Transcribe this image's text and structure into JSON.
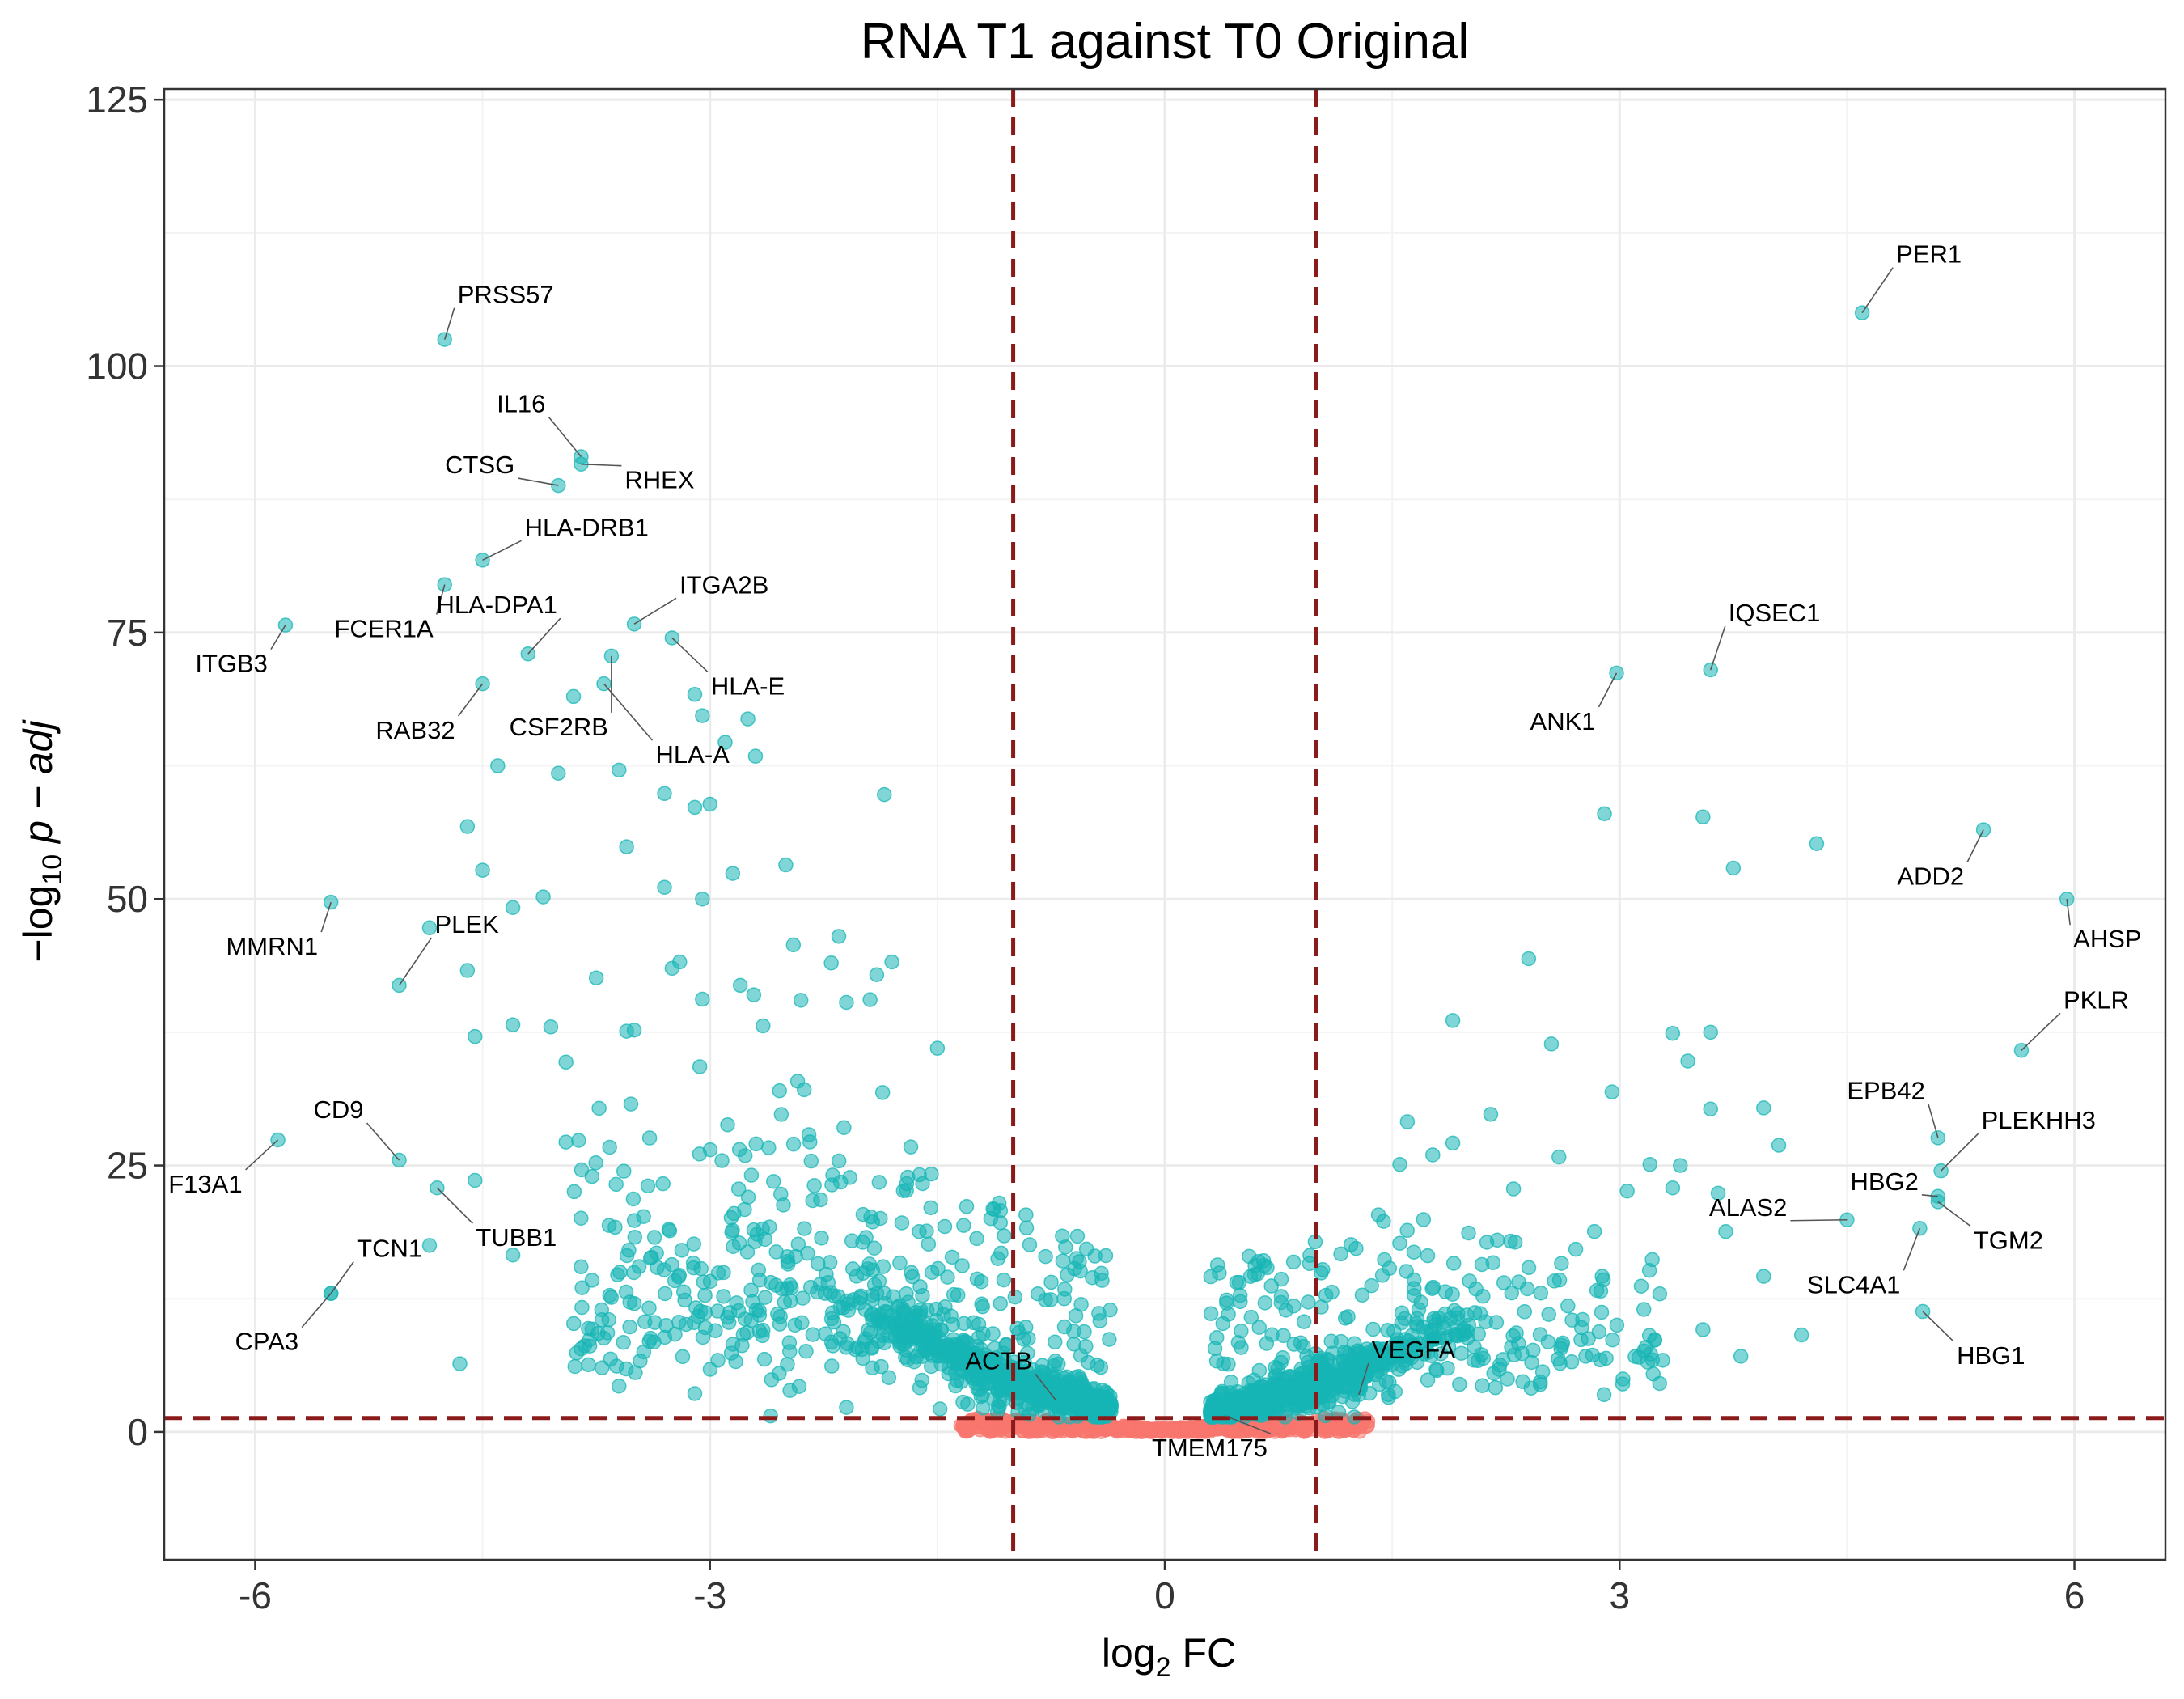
{
  "chart_data": {
    "type": "scatter",
    "title": "RNA T1 against T0 Original",
    "xlabel": "log2 FC",
    "ylabel": "-log10 p-adj",
    "xlim": [
      -6.6,
      6.6
    ],
    "ylim": [
      -12,
      126
    ],
    "x_ticks": [
      -6,
      -3,
      0,
      3,
      6
    ],
    "x_tick_labels": [
      "-6",
      "-3",
      "0",
      "3",
      "6"
    ],
    "y_ticks": [
      0,
      25,
      50,
      75,
      100,
      125
    ],
    "y_tick_labels": [
      "0",
      "25",
      "50",
      "75",
      "100",
      "125"
    ],
    "thresholds": {
      "log2fc": [
        -1,
        1
      ],
      "neg_log10_padj": 1.3
    },
    "colors": {
      "significant": "#17B5B5",
      "not_significant": "#F8766D",
      "threshold_line": "#8B1A1A"
    },
    "grid": true,
    "legend": "none",
    "labeled_genes": [
      {
        "gene": "PER1",
        "x": 4.6,
        "y": 105
      },
      {
        "gene": "PRSS57",
        "x": -4.75,
        "y": 102.5
      },
      {
        "gene": "IL16",
        "x": -3.85,
        "y": 91.5
      },
      {
        "gene": "RHEX",
        "x": -3.85,
        "y": 90.8
      },
      {
        "gene": "CTSG",
        "x": -4.0,
        "y": 88.8
      },
      {
        "gene": "HLA-DRB1",
        "x": -4.5,
        "y": 81.8
      },
      {
        "gene": "FCER1A",
        "x": -4.75,
        "y": 79.5
      },
      {
        "gene": "ITGA2B",
        "x": -3.5,
        "y": 75.8
      },
      {
        "gene": "ITGB3",
        "x": -5.8,
        "y": 75.7
      },
      {
        "gene": "HLA-DPA1",
        "x": -4.2,
        "y": 73
      },
      {
        "gene": "HLA-E",
        "x": -3.25,
        "y": 74.5
      },
      {
        "gene": "IQSEC1",
        "x": 3.6,
        "y": 71.5
      },
      {
        "gene": "ANK1",
        "x": 2.98,
        "y": 71.2
      },
      {
        "gene": "RAB32",
        "x": -4.5,
        "y": 70.2
      },
      {
        "gene": "CSF2RB",
        "x": -3.65,
        "y": 72.8
      },
      {
        "gene": "HLA-A",
        "x": -3.7,
        "y": 70.2
      },
      {
        "gene": "ADD2",
        "x": 5.4,
        "y": 56.5
      },
      {
        "gene": "AHSP",
        "x": 5.95,
        "y": 50
      },
      {
        "gene": "MMRN1",
        "x": -5.5,
        "y": 49.7
      },
      {
        "gene": "PLEK",
        "x": -5.05,
        "y": 41.9
      },
      {
        "gene": "PKLR",
        "x": 5.65,
        "y": 35.8
      },
      {
        "gene": "EPB42",
        "x": 5.1,
        "y": 27.6
      },
      {
        "gene": "F13A1",
        "x": -5.85,
        "y": 27.4
      },
      {
        "gene": "CD9",
        "x": -5.05,
        "y": 25.5
      },
      {
        "gene": "PLEKHH3",
        "x": 5.12,
        "y": 24.5
      },
      {
        "gene": "HBG2",
        "x": 5.1,
        "y": 22.1
      },
      {
        "gene": "TUBB1",
        "x": -4.8,
        "y": 22.9
      },
      {
        "gene": "TGM2",
        "x": 5.1,
        "y": 21.6
      },
      {
        "gene": "ALAS2",
        "x": 4.5,
        "y": 19.9
      },
      {
        "gene": "SLC4A1",
        "x": 4.98,
        "y": 19.1
      },
      {
        "gene": "TCN1",
        "x": -5.5,
        "y": 13
      },
      {
        "gene": "CPA3",
        "x": -5.5,
        "y": 13.0
      },
      {
        "gene": "HBG1",
        "x": 5.0,
        "y": 11.3
      },
      {
        "gene": "ACTB",
        "x": -0.72,
        "y": 3.0
      },
      {
        "gene": "VEGFA",
        "x": 1.28,
        "y": 3.5
      },
      {
        "gene": "TMEM175",
        "x": 0.4,
        "y": 1.5
      }
    ],
    "unlabeled_significant": [
      [
        -4.6,
        56.8
      ],
      [
        -4.5,
        52.7
      ],
      [
        -4.3,
        49.2
      ],
      [
        -4.1,
        50.2
      ],
      [
        -4.0,
        61.8
      ],
      [
        -4.4,
        62.5
      ],
      [
        -3.6,
        62.1
      ],
      [
        -3.55,
        54.9
      ],
      [
        -3.3,
        59.9
      ],
      [
        -3.3,
        51.1
      ],
      [
        -3.1,
        58.6
      ],
      [
        -3.0,
        58.9
      ],
      [
        -3.05,
        67.2
      ],
      [
        -2.9,
        64.7
      ],
      [
        -2.85,
        52.4
      ],
      [
        -2.75,
        66.9
      ],
      [
        -2.7,
        63.4
      ],
      [
        -2.5,
        53.2
      ],
      [
        -1.85,
        59.8
      ],
      [
        -3.05,
        50.0
      ],
      [
        -3.9,
        69.0
      ],
      [
        -3.1,
        69.2
      ],
      [
        -4.85,
        47.3
      ],
      [
        -4.6,
        43.3
      ],
      [
        -4.55,
        37.1
      ],
      [
        -4.3,
        38.2
      ],
      [
        -4.05,
        38.0
      ],
      [
        -3.95,
        34.7
      ],
      [
        -3.75,
        42.6
      ],
      [
        -3.55,
        37.6
      ],
      [
        -3.5,
        37.7
      ],
      [
        -3.25,
        43.5
      ],
      [
        -3.2,
        44.1
      ],
      [
        -3.05,
        40.6
      ],
      [
        -2.8,
        41.9
      ],
      [
        -2.65,
        38.1
      ],
      [
        -2.45,
        45.7
      ],
      [
        -2.4,
        40.5
      ],
      [
        -2.2,
        44.0
      ],
      [
        -2.15,
        46.5
      ],
      [
        -2.1,
        40.3
      ],
      [
        -1.8,
        44.1
      ],
      [
        -1.9,
        42.9
      ],
      [
        -1.5,
        36.0
      ],
      [
        -4.55,
        23.6
      ],
      [
        -4.65,
        6.4
      ],
      [
        -4.3,
        16.6
      ],
      [
        -4.85,
        17.5
      ],
      [
        -3.95,
        27.2
      ],
      [
        -3.85,
        7.8
      ],
      [
        -3.7,
        8.8
      ],
      [
        -3.6,
        4.3
      ],
      [
        -3.4,
        8.5
      ],
      [
        -3.1,
        3.6
      ],
      [
        -2.6,
        1.5
      ],
      [
        -2.1,
        2.3
      ],
      [
        -1.3,
        2.6
      ],
      [
        2.4,
        44.4
      ],
      [
        2.9,
        58.0
      ],
      [
        3.55,
        57.7
      ],
      [
        3.75,
        52.9
      ],
      [
        4.3,
        55.2
      ],
      [
        1.9,
        38.6
      ],
      [
        2.55,
        36.4
      ],
      [
        3.35,
        37.4
      ],
      [
        3.6,
        37.5
      ],
      [
        3.45,
        34.8
      ],
      [
        2.95,
        31.9
      ],
      [
        3.6,
        30.3
      ],
      [
        3.95,
        30.4
      ],
      [
        4.05,
        26.9
      ],
      [
        3.2,
        25.1
      ],
      [
        3.4,
        25.0
      ],
      [
        3.35,
        22.9
      ],
      [
        3.65,
        22.4
      ],
      [
        3.7,
        18.8
      ],
      [
        3.95,
        14.6
      ],
      [
        4.2,
        9.1
      ],
      [
        3.8,
        7.1
      ],
      [
        3.55,
        9.6
      ],
      [
        1.6,
        29.1
      ],
      [
        1.55,
        25.1
      ],
      [
        1.9,
        27.1
      ],
      [
        2.15,
        29.8
      ],
      [
        2.3,
        22.8
      ],
      [
        2.6,
        25.8
      ],
      [
        3.05,
        22.6
      ]
    ]
  }
}
